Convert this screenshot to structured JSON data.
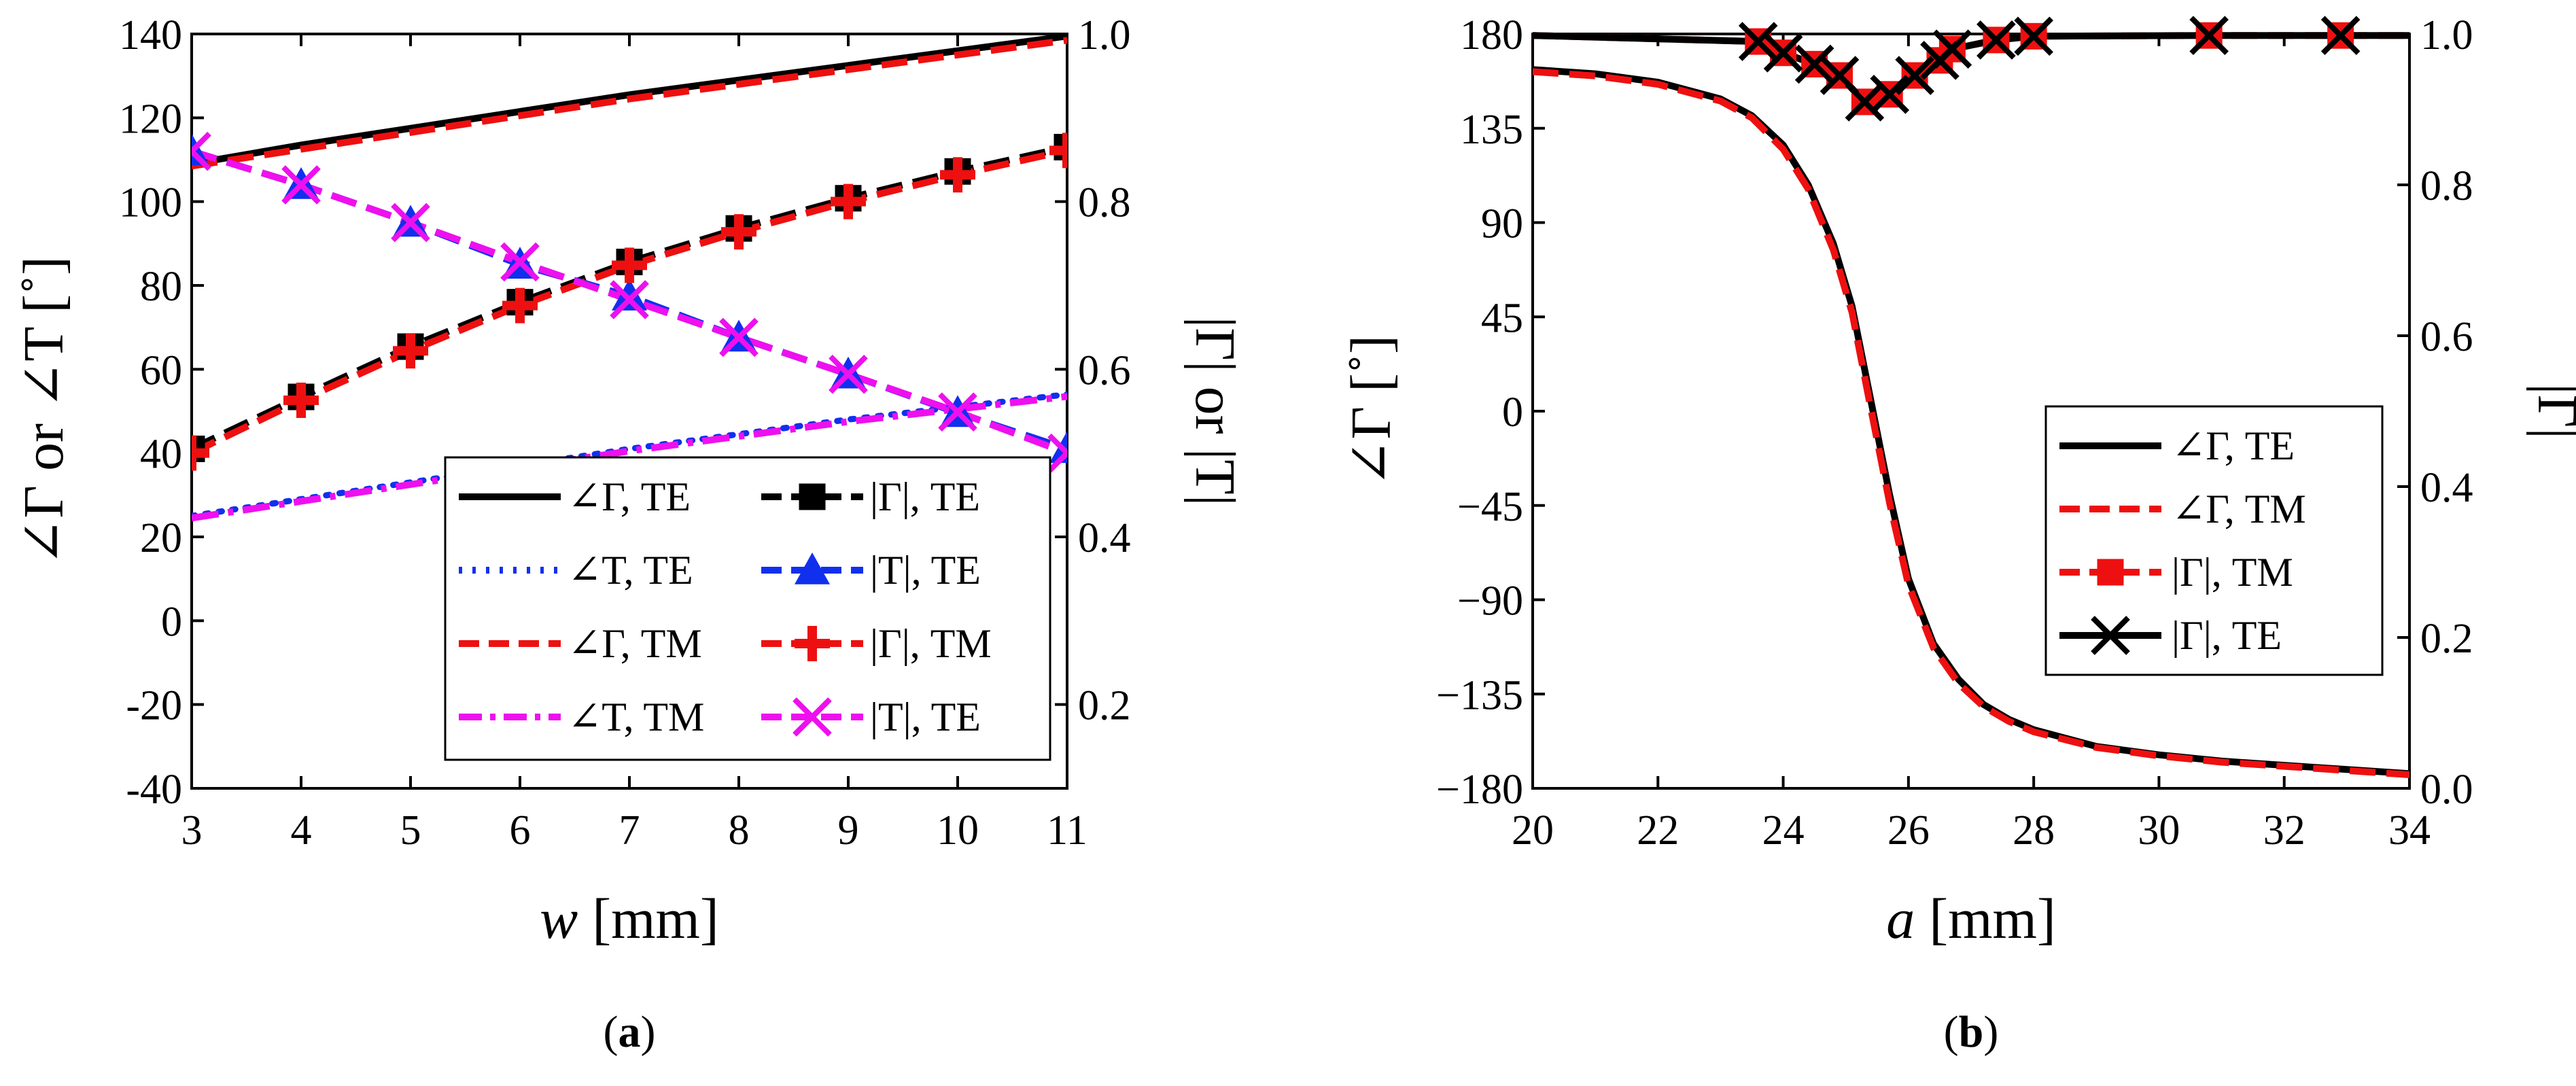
{
  "chart_data": [
    {
      "panel": "(a)",
      "panel_letter": "a",
      "type": "line",
      "xlabel_italic": "w",
      "xlabel_rest": " [mm]",
      "ylabel_left": "∠Γ or ∠T [˚]",
      "ylabel_right": "|Γ| or |T|",
      "xlim": [
        3,
        11
      ],
      "ylim_left": [
        -40,
        140
      ],
      "ylim_right": [
        0.1,
        1.0
      ],
      "x_ticks": [
        3,
        4,
        5,
        6,
        7,
        8,
        9,
        10,
        11
      ],
      "y_left_ticks": [
        -40,
        -20,
        0,
        20,
        40,
        60,
        80,
        100,
        120,
        140
      ],
      "y_right_ticks": [
        "0.2",
        "0.4",
        "0.6",
        "0.8",
        "1.0"
      ],
      "series": [
        {
          "name": "∠Γ, TE",
          "axis": "left",
          "color": "#000000",
          "dash": "solid",
          "marker": "none",
          "x": [
            3,
            4,
            5,
            6,
            7,
            8,
            9,
            10,
            11
          ],
          "y": [
            109,
            113.5,
            117.5,
            121.5,
            125.5,
            129,
            132.5,
            136,
            139.5
          ]
        },
        {
          "name": "∠T, TE",
          "axis": "left",
          "color": "#1030ee",
          "dash": "dot",
          "marker": "none",
          "x": [
            3,
            4,
            5,
            6,
            7,
            8,
            9,
            10,
            11
          ],
          "y": [
            25,
            29,
            33,
            37,
            41,
            44.5,
            48,
            51,
            54
          ]
        },
        {
          "name": "∠Γ, TM",
          "axis": "left",
          "color": "#ee1010",
          "dash": "dash",
          "marker": "none",
          "x": [
            3,
            4,
            5,
            6,
            7,
            8,
            9,
            10,
            11
          ],
          "y": [
            108.5,
            112.5,
            116.5,
            120.5,
            124.5,
            128,
            131.5,
            135,
            138.5
          ]
        },
        {
          "name": "∠T, TM",
          "axis": "left",
          "color": "#ee10ee",
          "dash": "dashdot",
          "marker": "none",
          "x": [
            3,
            4,
            5,
            6,
            7,
            8,
            9,
            10,
            11
          ],
          "y": [
            24.5,
            28.5,
            32.5,
            36.5,
            40.5,
            44,
            47.5,
            50.5,
            53.5
          ]
        },
        {
          "name": "|Γ|, TE",
          "axis": "right",
          "color": "#000000",
          "dash": "dash",
          "marker": "square",
          "x": [
            3,
            4,
            5,
            6,
            7,
            8,
            9,
            10,
            11
          ],
          "y": [
            0.505,
            0.567,
            0.627,
            0.68,
            0.728,
            0.768,
            0.804,
            0.836,
            0.865
          ]
        },
        {
          "name": "|T|, TE",
          "axis": "right",
          "color": "#1030ee",
          "dash": "dash",
          "marker": "triangle",
          "x": [
            3,
            4,
            5,
            6,
            7,
            8,
            9,
            10,
            11
          ],
          "y": [
            0.86,
            0.82,
            0.775,
            0.725,
            0.687,
            0.638,
            0.594,
            0.548,
            0.505
          ]
        },
        {
          "name": "|Γ|, TM",
          "axis": "right",
          "color": "#ee1010",
          "dash": "dash",
          "marker": "plus",
          "x": [
            3,
            4,
            5,
            6,
            7,
            8,
            9,
            10,
            11
          ],
          "y": [
            0.5,
            0.563,
            0.622,
            0.676,
            0.724,
            0.764,
            0.8,
            0.832,
            0.861
          ]
        },
        {
          "name": "|T|, TE",
          "axis": "right",
          "color": "#ee10ee",
          "dash": "dash",
          "marker": "x",
          "x": [
            3,
            4,
            5,
            6,
            7,
            8,
            9,
            10,
            11
          ],
          "y": [
            0.86,
            0.82,
            0.775,
            0.728,
            0.683,
            0.638,
            0.594,
            0.549,
            0.5
          ]
        }
      ]
    },
    {
      "panel": "(b)",
      "panel_letter": "b",
      "type": "line",
      "xlabel_italic": "a",
      "xlabel_rest": " [mm]",
      "ylabel_left": "∠Γ [˚]",
      "ylabel_right": "|Γ|",
      "xlim": [
        20,
        34
      ],
      "ylim_left": [
        -180,
        180
      ],
      "ylim_right": [
        0.0,
        1.0
      ],
      "x_ticks": [
        20,
        22,
        24,
        26,
        28,
        30,
        32,
        34
      ],
      "y_left_ticks": [
        "−180",
        "−135",
        "−90",
        "−45",
        "0",
        "45",
        "90",
        "135",
        "180"
      ],
      "y_right_ticks": [
        "0.0",
        "0.2",
        "0.4",
        "0.6",
        "0.8",
        "1.0"
      ],
      "series": [
        {
          "name": "∠Γ, TE",
          "axis": "left",
          "color": "#000000",
          "dash": "solid",
          "marker": "none",
          "x": [
            20,
            21,
            22,
            23,
            23.5,
            24,
            24.4,
            24.8,
            25.1,
            25.4,
            25.7,
            26,
            26.4,
            26.8,
            27.2,
            27.6,
            28,
            29,
            30,
            31,
            32,
            33,
            34
          ],
          "y": [
            163,
            161,
            157,
            149,
            141,
            127,
            108,
            80,
            50,
            5,
            -40,
            -80,
            -111,
            -128,
            -140,
            -147,
            -152,
            -160,
            -164,
            -167,
            -169,
            -171,
            -173
          ]
        },
        {
          "name": "∠Γ, TM",
          "axis": "left",
          "color": "#ee1010",
          "dash": "dash",
          "marker": "none",
          "x": [
            20,
            21,
            22,
            23,
            23.5,
            24,
            24.4,
            24.8,
            25.1,
            25.4,
            25.7,
            26,
            26.4,
            26.8,
            27.2,
            27.6,
            28,
            29,
            30,
            31,
            32,
            33,
            34
          ],
          "y": [
            162,
            160,
            156,
            148,
            140,
            125,
            106,
            77,
            47,
            1,
            -44,
            -83,
            -113,
            -130,
            -141,
            -148,
            -153,
            -160.5,
            -164.5,
            -167.5,
            -169.5,
            -171.5,
            -173.5
          ]
        },
        {
          "name": "|Γ|, TM",
          "axis": "right",
          "color": "#ee1010",
          "dash": "dash",
          "marker": "square",
          "x": [
            20,
            23.6,
            24,
            24.5,
            24.9,
            25.3,
            25.7,
            26.1,
            26.5,
            26.7,
            27.4,
            28,
            30.8,
            32.9,
            34
          ],
          "y": [
            0.998,
            0.99,
            0.975,
            0.96,
            0.945,
            0.91,
            0.92,
            0.945,
            0.965,
            0.98,
            0.992,
            0.997,
            0.998,
            0.998,
            0.998
          ]
        },
        {
          "name": "|Γ|, TE",
          "axis": "right",
          "color": "#000000",
          "dash": "solid",
          "marker": "x",
          "x": [
            20,
            23.6,
            24,
            24.5,
            24.9,
            25.3,
            25.7,
            26.1,
            26.5,
            26.7,
            27.4,
            28,
            30.8,
            32.9,
            34
          ],
          "y": [
            0.998,
            0.99,
            0.975,
            0.96,
            0.945,
            0.91,
            0.92,
            0.945,
            0.965,
            0.98,
            0.992,
            0.997,
            0.998,
            0.998,
            0.998
          ]
        }
      ]
    }
  ]
}
